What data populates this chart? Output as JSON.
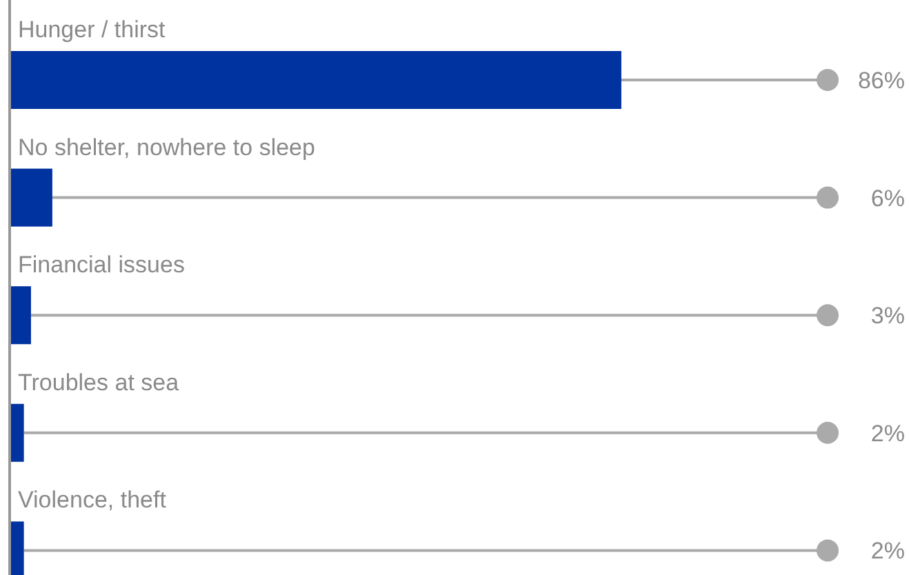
{
  "chart_data": {
    "type": "bar",
    "orientation": "horizontal",
    "categories": [
      "Hunger / thirst",
      "No shelter, nowhere to sleep",
      "Financial issues",
      "Troubles at sea",
      "Violence, theft"
    ],
    "values": [
      86,
      6,
      3,
      2,
      2
    ],
    "value_labels": [
      "86%",
      "6%",
      "3%",
      "2%",
      "2%"
    ],
    "color": "#0033a0",
    "xlim": [
      0,
      115
    ],
    "tick_labels": "y"
  }
}
